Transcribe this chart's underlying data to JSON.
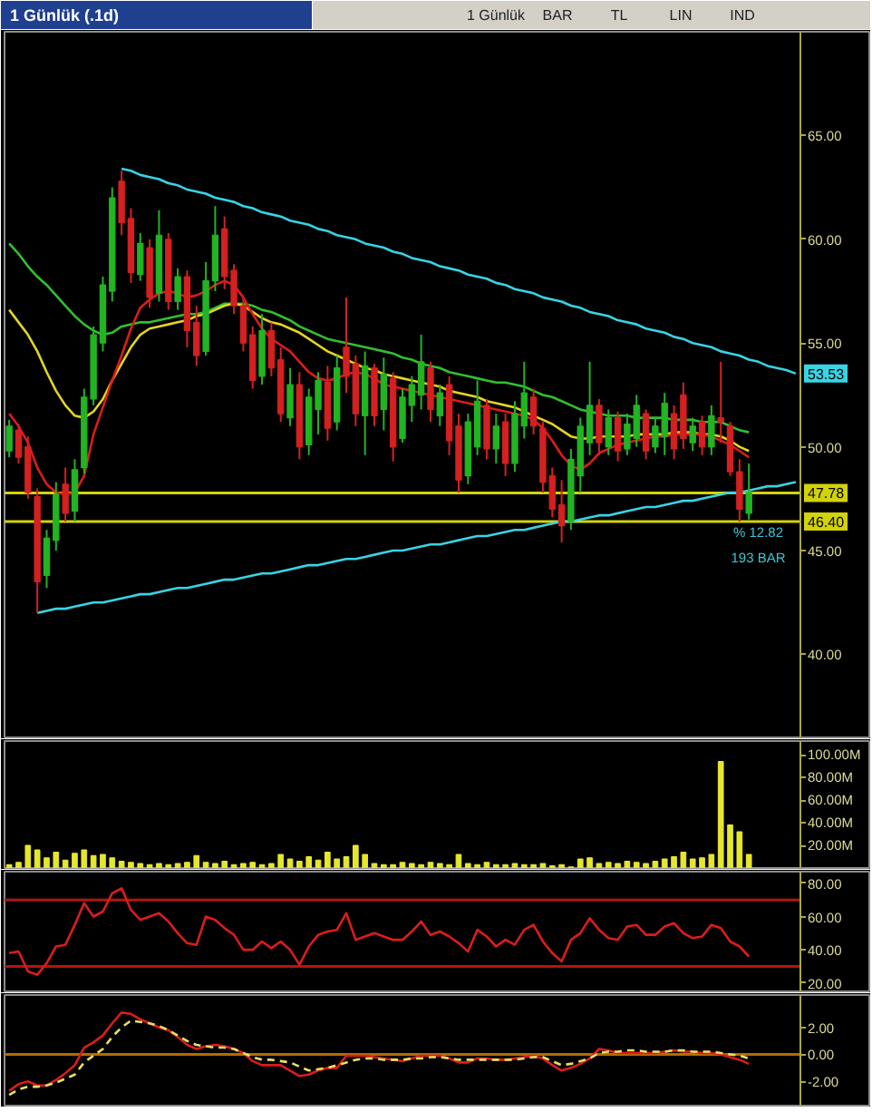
{
  "chart_data": [
    {
      "type": "other",
      "title": "1 Günlük (.1d)",
      "annotations": [
        "1 Günlük",
        "BAR",
        "TL",
        "LIN",
        "IND"
      ]
    },
    {
      "type": "candlestick",
      "categories": [
        null,
        null,
        null,
        null,
        null,
        null,
        null,
        null,
        null,
        null,
        null,
        null,
        null,
        null,
        null,
        null,
        null,
        null,
        null,
        null,
        null,
        null,
        null,
        null,
        null,
        null,
        null,
        null,
        null,
        null,
        null,
        null,
        null,
        null,
        null,
        null,
        null,
        null,
        null,
        null,
        null,
        null,
        null,
        null,
        null,
        null,
        null,
        null,
        null,
        null,
        null,
        null,
        null,
        null,
        null,
        null,
        null,
        null,
        null,
        null,
        null,
        null,
        null,
        null,
        null,
        null,
        null,
        null,
        null,
        null,
        null,
        null,
        null,
        null,
        null,
        null,
        null,
        null,
        null,
        null,
        null,
        null,
        null,
        null,
        null
      ],
      "ohlc": [
        [
          49.8,
          51.3,
          49.5,
          51.0
        ],
        [
          50.8,
          51.1,
          49.2,
          49.5
        ],
        [
          50.0,
          50.5,
          47.5,
          47.8
        ],
        [
          47.6,
          48.0,
          42.0,
          43.5
        ],
        [
          43.8,
          46.0,
          43.2,
          45.6
        ],
        [
          45.5,
          48.3,
          45.0,
          47.7
        ],
        [
          48.2,
          49.0,
          46.4,
          46.8
        ],
        [
          46.9,
          49.4,
          46.4,
          48.9
        ],
        [
          49.0,
          52.8,
          48.7,
          52.4
        ],
        [
          52.3,
          55.8,
          52.0,
          55.4
        ],
        [
          55.0,
          58.2,
          54.6,
          57.8
        ],
        [
          57.5,
          62.5,
          57.0,
          62.0
        ],
        [
          62.8,
          63.3,
          60.2,
          60.8
        ],
        [
          61.0,
          61.5,
          57.9,
          58.4
        ],
        [
          58.3,
          60.3,
          58.0,
          59.8
        ],
        [
          59.6,
          60.0,
          56.7,
          57.2
        ],
        [
          57.4,
          61.4,
          57.0,
          60.2
        ],
        [
          60.0,
          60.3,
          56.6,
          57.0
        ],
        [
          57.0,
          58.6,
          56.6,
          58.2
        ],
        [
          58.2,
          58.5,
          54.8,
          55.6
        ],
        [
          56.0,
          56.8,
          53.9,
          54.4
        ],
        [
          54.6,
          58.9,
          54.4,
          58.0
        ],
        [
          58.0,
          61.6,
          57.5,
          60.2
        ],
        [
          60.5,
          61.1,
          57.6,
          58.2
        ],
        [
          58.5,
          58.8,
          56.4,
          56.8
        ],
        [
          56.8,
          57.2,
          54.6,
          55.0
        ],
        [
          55.4,
          55.8,
          52.8,
          53.2
        ],
        [
          53.4,
          56.4,
          53.0,
          55.6
        ],
        [
          55.6,
          56.0,
          53.4,
          53.8
        ],
        [
          54.2,
          54.8,
          51.2,
          51.6
        ],
        [
          51.4,
          53.8,
          51.0,
          53.0
        ],
        [
          53.0,
          53.6,
          49.4,
          50.0
        ],
        [
          50.1,
          52.8,
          49.6,
          52.4
        ],
        [
          51.8,
          53.6,
          50.6,
          53.2
        ],
        [
          53.1,
          53.9,
          50.3,
          50.9
        ],
        [
          51.2,
          54.4,
          50.8,
          53.8
        ],
        [
          54.8,
          57.2,
          52.6,
          53.4
        ],
        [
          54.0,
          54.4,
          51.0,
          51.6
        ],
        [
          51.5,
          54.6,
          49.6,
          53.9
        ],
        [
          53.8,
          54.0,
          51.0,
          51.5
        ],
        [
          51.8,
          54.3,
          50.8,
          53.5
        ],
        [
          53.3,
          53.6,
          49.3,
          50.0
        ],
        [
          50.4,
          52.8,
          50.2,
          52.4
        ],
        [
          52.0,
          53.4,
          51.2,
          53.0
        ],
        [
          52.5,
          55.4,
          51.8,
          54.1
        ],
        [
          53.8,
          54.1,
          51.2,
          51.8
        ],
        [
          51.5,
          53.0,
          51.0,
          52.6
        ],
        [
          53.0,
          53.4,
          49.6,
          50.3
        ],
        [
          51.0,
          51.6,
          47.8,
          48.4
        ],
        [
          48.6,
          51.6,
          48.2,
          51.2
        ],
        [
          50.0,
          53.2,
          49.6,
          52.2
        ],
        [
          52.0,
          52.3,
          49.4,
          49.9
        ],
        [
          49.9,
          51.6,
          49.2,
          51.0
        ],
        [
          51.2,
          51.6,
          48.6,
          49.2
        ],
        [
          49.2,
          52.2,
          48.8,
          51.6
        ],
        [
          51.0,
          54.1,
          50.4,
          52.6
        ],
        [
          52.4,
          52.8,
          50.6,
          51.0
        ],
        [
          50.9,
          51.2,
          47.8,
          48.3
        ],
        [
          48.6,
          49.0,
          46.6,
          47.0
        ],
        [
          47.2,
          48.4,
          45.4,
          46.2
        ],
        [
          46.4,
          49.9,
          46.0,
          49.4
        ],
        [
          48.6,
          51.4,
          47.8,
          51.0
        ],
        [
          50.2,
          54.1,
          49.6,
          52.0
        ],
        [
          52.0,
          52.3,
          49.6,
          50.2
        ],
        [
          50.0,
          51.8,
          49.6,
          51.4
        ],
        [
          51.4,
          51.7,
          49.3,
          49.8
        ],
        [
          49.9,
          51.6,
          49.6,
          51.1
        ],
        [
          50.4,
          52.5,
          50.0,
          52.0
        ],
        [
          51.6,
          51.8,
          49.4,
          49.8
        ],
        [
          50.0,
          51.4,
          49.7,
          51.0
        ],
        [
          50.5,
          52.6,
          49.6,
          52.1
        ],
        [
          51.6,
          52.0,
          49.4,
          49.9
        ],
        [
          52.5,
          53.1,
          49.9,
          50.4
        ],
        [
          50.2,
          51.4,
          49.8,
          51.0
        ],
        [
          51.2,
          51.5,
          49.6,
          50.0
        ],
        [
          50.0,
          52.0,
          49.6,
          51.5
        ],
        [
          51.4,
          54.1,
          50.2,
          51.2
        ],
        [
          51.0,
          51.2,
          48.6,
          48.8
        ],
        [
          48.8,
          49.4,
          46.4,
          47.0
        ],
        [
          46.8,
          49.2,
          46.5,
          47.8
        ],
        null,
        null,
        null,
        null,
        null
      ],
      "colors": [
        "#22b422",
        "#d42020",
        "#d42020",
        "#d42020",
        "#22b422",
        "#22b422",
        "#d42020",
        "#22b422",
        "#22b422",
        "#22b422",
        "#22b422",
        "#22b422",
        "#d42020",
        "#d42020",
        "#22b422",
        "#d42020",
        "#22b422",
        "#d42020",
        "#22b422",
        "#d42020",
        "#d42020",
        "#22b422",
        "#22b422",
        "#d42020",
        "#d42020",
        "#d42020",
        "#d42020",
        "#22b422",
        "#d42020",
        "#d42020",
        "#22b422",
        "#d42020",
        "#22b422",
        "#22b422",
        "#d42020",
        "#22b422",
        "#d42020",
        "#d42020",
        "#22b422",
        "#d42020",
        "#22b422",
        "#d42020",
        "#22b422",
        "#22b422",
        "#22b422",
        "#d42020",
        "#22b422",
        "#d42020",
        "#d42020",
        "#22b422",
        "#22b422",
        "#d42020",
        "#22b422",
        "#d42020",
        "#22b422",
        "#22b422",
        "#d42020",
        "#d42020",
        "#d42020",
        "#d42020",
        "#22b422",
        "#22b422",
        "#22b422",
        "#d42020",
        "#22b422",
        "#d42020",
        "#22b422",
        "#22b422",
        "#d42020",
        "#22b422",
        "#22b422",
        "#d42020",
        "#d42020",
        "#22b422",
        "#d42020",
        "#22b422",
        "#d42020",
        "#d42020",
        "#d42020",
        "#22b422",
        null,
        null,
        null,
        null,
        null
      ],
      "series": [
        {
          "type": "line",
          "color": "#30c030",
          "values": [
            59.8,
            59.3,
            58.7,
            58.2,
            57.8,
            57.3,
            56.8,
            56.3,
            55.9,
            55.6,
            55.4,
            55.5,
            55.8,
            55.9,
            56.0,
            56.0,
            56.1,
            56.2,
            56.3,
            56.4,
            56.4,
            56.5,
            56.7,
            56.9,
            56.9,
            56.9,
            56.8,
            56.6,
            56.5,
            56.3,
            56.1,
            55.8,
            55.6,
            55.4,
            55.2,
            55.1,
            55.0,
            54.9,
            54.8,
            54.7,
            54.6,
            54.5,
            54.3,
            54.2,
            54.0,
            53.9,
            53.8,
            53.6,
            53.5,
            53.4,
            53.3,
            53.2,
            53.1,
            53.1,
            53.0,
            52.9,
            52.7,
            52.5,
            52.4,
            52.2,
            52.0,
            51.8,
            51.7,
            51.6,
            51.5,
            51.5,
            51.5,
            51.4,
            51.4,
            51.4,
            51.4,
            51.3,
            51.3,
            51.3,
            51.2,
            51.2,
            51.2,
            51.0,
            50.8,
            50.7,
            null,
            null,
            null,
            null,
            null
          ]
        },
        {
          "type": "line",
          "color": "#e4d424",
          "values": [
            56.6,
            56.0,
            55.4,
            54.6,
            53.6,
            52.7,
            52.0,
            51.5,
            51.4,
            51.7,
            52.3,
            53.2,
            54.0,
            54.8,
            55.4,
            55.7,
            55.8,
            55.9,
            56.0,
            56.1,
            56.3,
            56.4,
            56.6,
            56.8,
            56.9,
            56.8,
            56.5,
            56.2,
            56.0,
            55.9,
            55.7,
            55.5,
            55.2,
            54.9,
            54.6,
            54.4,
            54.2,
            54.0,
            53.8,
            53.7,
            53.5,
            53.4,
            53.3,
            53.2,
            53.1,
            53.0,
            52.9,
            52.7,
            52.6,
            52.5,
            52.4,
            52.2,
            52.1,
            52.0,
            51.9,
            51.7,
            51.5,
            51.3,
            51.1,
            50.8,
            50.5,
            50.4,
            50.4,
            50.5,
            50.5,
            50.5,
            50.5,
            50.6,
            50.6,
            50.6,
            50.6,
            50.7,
            50.7,
            50.7,
            50.6,
            50.6,
            50.5,
            50.3,
            50.0,
            49.8,
            null,
            null,
            null,
            null,
            null
          ]
        },
        {
          "type": "line",
          "color": "#dc1c1c",
          "values": [
            51.6,
            51.0,
            50.2,
            49.0,
            48.2,
            47.8,
            47.7,
            47.8,
            48.6,
            50.6,
            51.9,
            53.2,
            54.4,
            55.7,
            56.7,
            57.1,
            57.4,
            57.5,
            57.4,
            57.2,
            57.3,
            57.5,
            57.8,
            58.0,
            57.8,
            57.2,
            56.4,
            55.7,
            55.2,
            54.9,
            54.6,
            54.1,
            53.6,
            53.3,
            53.2,
            53.3,
            53.5,
            53.6,
            53.5,
            53.3,
            53.0,
            52.9,
            52.8,
            52.7,
            52.6,
            52.5,
            52.4,
            52.3,
            52.2,
            52.1,
            52.0,
            51.9,
            51.8,
            51.7,
            51.6,
            51.5,
            51.3,
            50.9,
            50.3,
            49.6,
            49.1,
            48.9,
            49.2,
            49.7,
            49.9,
            50.1,
            50.2,
            50.3,
            50.4,
            50.5,
            50.5,
            50.6,
            50.6,
            50.6,
            50.6,
            50.5,
            50.3,
            50.1,
            49.8,
            49.5,
            null,
            null,
            null,
            null,
            null
          ]
        },
        {
          "type": "line",
          "color": "#38d4e4",
          "values": [
            null,
            null,
            null,
            null,
            null,
            null,
            null,
            null,
            null,
            null,
            null,
            null,
            63.4,
            63.3,
            63.1,
            63.0,
            62.9,
            62.7,
            62.6,
            62.4,
            62.3,
            62.2,
            62.0,
            61.9,
            61.8,
            61.6,
            61.5,
            61.3,
            61.2,
            61.1,
            60.9,
            60.8,
            60.7,
            60.5,
            60.4,
            60.2,
            60.1,
            60.0,
            59.8,
            59.7,
            59.6,
            59.4,
            59.3,
            59.1,
            59.0,
            58.9,
            58.7,
            58.6,
            58.5,
            58.3,
            58.2,
            58.1,
            57.9,
            57.8,
            57.6,
            57.5,
            57.4,
            57.2,
            57.1,
            57.0,
            56.8,
            56.7,
            56.5,
            56.4,
            56.3,
            56.1,
            56.0,
            55.9,
            55.7,
            55.6,
            55.5,
            55.3,
            55.2,
            55.0,
            54.9,
            54.8,
            54.6,
            54.5,
            54.4,
            54.2,
            54.1,
            53.9,
            53.8,
            53.7,
            53.53
          ],
          "value_labels": [
            null,
            null,
            null,
            null,
            null,
            null,
            null,
            null,
            null,
            null,
            null,
            null,
            null,
            null,
            null,
            null,
            null,
            null,
            null,
            null,
            null,
            null,
            null,
            null,
            null,
            null,
            null,
            null,
            null,
            null,
            null,
            null,
            null,
            null,
            null,
            null,
            null,
            null,
            null,
            null,
            null,
            null,
            null,
            null,
            null,
            null,
            null,
            null,
            null,
            null,
            null,
            null,
            null,
            null,
            null,
            null,
            null,
            null,
            null,
            null,
            null,
            null,
            null,
            null,
            null,
            null,
            null,
            null,
            null,
            null,
            null,
            null,
            null,
            null,
            null,
            null,
            null,
            null,
            null,
            null,
            null,
            null,
            null,
            null,
            "53.53"
          ]
        },
        {
          "type": "line",
          "color": "#38d4e4",
          "values": [
            null,
            null,
            null,
            42.0,
            42.1,
            42.2,
            42.2,
            42.3,
            42.4,
            42.5,
            42.5,
            42.6,
            42.7,
            42.8,
            42.9,
            42.9,
            43.0,
            43.1,
            43.2,
            43.2,
            43.3,
            43.4,
            43.5,
            43.6,
            43.6,
            43.7,
            43.8,
            43.9,
            43.9,
            44.0,
            44.1,
            44.2,
            44.3,
            44.3,
            44.4,
            44.5,
            44.6,
            44.6,
            44.7,
            44.8,
            44.9,
            45.0,
            45.0,
            45.1,
            45.2,
            45.3,
            45.3,
            45.4,
            45.5,
            45.6,
            45.7,
            45.7,
            45.8,
            45.9,
            46.0,
            46.0,
            46.1,
            46.2,
            46.3,
            46.4,
            46.4,
            46.5,
            46.6,
            46.7,
            46.7,
            46.8,
            46.9,
            47.0,
            47.1,
            47.1,
            47.2,
            47.3,
            47.4,
            47.4,
            47.5,
            47.6,
            47.7,
            47.8,
            47.8,
            47.9,
            48.0,
            48.1,
            48.1,
            48.2,
            48.3
          ]
        }
      ],
      "ylim": [
        36,
        70
      ],
      "yticks": [
        {
          "value": 40,
          "label": "40.00"
        },
        {
          "value": 45,
          "label": "45.00"
        },
        {
          "value": 50,
          "label": "50.00"
        },
        {
          "value": 55,
          "label": "55.00"
        },
        {
          "value": 60,
          "label": "60.00"
        },
        {
          "value": 65,
          "label": "65.00"
        }
      ],
      "ref_lines": [
        {
          "axis": "y",
          "value": 47.78,
          "label": "47.78",
          "color": "#d2d20a"
        },
        {
          "axis": "y",
          "value": 46.4,
          "label": "46.40",
          "color": "#d2d20a"
        }
      ],
      "annotations": [
        "% 12.82",
        "193 BAR"
      ],
      "tick_labels": "y"
    },
    {
      "type": "bar",
      "categories": [
        null,
        null,
        null,
        null,
        null,
        null,
        null,
        null,
        null,
        null,
        null,
        null,
        null,
        null,
        null,
        null,
        null,
        null,
        null,
        null,
        null,
        null,
        null,
        null,
        null,
        null,
        null,
        null,
        null,
        null,
        null,
        null,
        null,
        null,
        null,
        null,
        null,
        null,
        null,
        null,
        null,
        null,
        null,
        null,
        null,
        null,
        null,
        null,
        null,
        null,
        null,
        null,
        null,
        null,
        null,
        null,
        null,
        null,
        null,
        null,
        null,
        null,
        null,
        null,
        null,
        null,
        null,
        null,
        null,
        null,
        null,
        null,
        null,
        null,
        null,
        null,
        null,
        null,
        null,
        null,
        null,
        null,
        null,
        null,
        null
      ],
      "values": [
        3,
        5,
        20,
        16,
        9,
        14,
        7,
        13,
        16,
        11,
        12,
        9,
        6,
        5,
        4,
        3,
        4,
        3,
        4,
        5,
        11,
        5,
        4,
        6,
        3,
        4,
        5,
        3,
        4,
        12,
        8,
        6,
        10,
        7,
        14,
        8,
        10,
        20,
        12,
        4,
        3,
        3,
        5,
        4,
        3,
        5,
        4,
        3,
        12,
        4,
        3,
        5,
        3,
        3,
        4,
        3,
        3,
        4,
        2,
        3,
        1,
        8,
        9,
        4,
        5,
        4,
        6,
        5,
        4,
        6,
        8,
        10,
        14,
        8,
        9,
        12,
        94,
        38,
        32,
        12,
        null,
        null,
        null,
        null,
        null
      ],
      "color": "#e6e62e",
      "ylim": [
        0,
        112
      ],
      "yticks": [
        {
          "value": 20,
          "label": "20.00M"
        },
        {
          "value": 40,
          "label": "40.00M"
        },
        {
          "value": 60,
          "label": "60.00M"
        },
        {
          "value": 80,
          "label": "80.00M"
        },
        {
          "value": 100,
          "label": "100.00M"
        }
      ],
      "tick_labels": "y"
    },
    {
      "type": "line",
      "categories": [
        null,
        null,
        null,
        null,
        null,
        null,
        null,
        null,
        null,
        null,
        null,
        null,
        null,
        null,
        null,
        null,
        null,
        null,
        null,
        null,
        null,
        null,
        null,
        null,
        null,
        null,
        null,
        null,
        null,
        null,
        null,
        null,
        null,
        null,
        null,
        null,
        null,
        null,
        null,
        null,
        null,
        null,
        null,
        null,
        null,
        null,
        null,
        null,
        null,
        null,
        null,
        null,
        null,
        null,
        null,
        null,
        null,
        null,
        null,
        null,
        null,
        null,
        null,
        null,
        null,
        null,
        null,
        null,
        null,
        null,
        null,
        null,
        null,
        null,
        null,
        null,
        null,
        null,
        null,
        null,
        null,
        null,
        null,
        null,
        null
      ],
      "series": [
        {
          "color": "#dc1c1c",
          "values": [
            38,
            39,
            27,
            25,
            32,
            42,
            43,
            55,
            68,
            60,
            63,
            74,
            77,
            64,
            58,
            60,
            62,
            57,
            50,
            44,
            43,
            60,
            58,
            53,
            49,
            40,
            40,
            45,
            41,
            45,
            40,
            31,
            42,
            49,
            51,
            52,
            62,
            46,
            48,
            50,
            48,
            46,
            46,
            51,
            57,
            49,
            51,
            48,
            44,
            39,
            52,
            48,
            42,
            46,
            43,
            52,
            55,
            45,
            38,
            33,
            46,
            50,
            59,
            52,
            47,
            46,
            54,
            55,
            49,
            49,
            54,
            56,
            50,
            47,
            48,
            55,
            53,
            45,
            42,
            36,
            null,
            null,
            null,
            null,
            null
          ]
        }
      ],
      "ylim": [
        15,
        87
      ],
      "yticks": [
        {
          "value": 20,
          "label": "20.00"
        },
        {
          "value": 40,
          "label": "40.00"
        },
        {
          "value": 60,
          "label": "60.00"
        },
        {
          "value": 80,
          "label": "80.00"
        }
      ],
      "ref_lines": [
        {
          "axis": "y",
          "value": 70,
          "color": "#b41414"
        },
        {
          "axis": "y",
          "value": 30,
          "color": "#b41414"
        }
      ],
      "tick_labels": "y"
    },
    {
      "type": "line",
      "categories": [
        null,
        null,
        null,
        null,
        null,
        null,
        null,
        null,
        null,
        null,
        null,
        null,
        null,
        null,
        null,
        null,
        null,
        null,
        null,
        null,
        null,
        null,
        null,
        null,
        null,
        null,
        null,
        null,
        null,
        null,
        null,
        null,
        null,
        null,
        null,
        null,
        null,
        null,
        null,
        null,
        null,
        null,
        null,
        null,
        null,
        null,
        null,
        null,
        null,
        null,
        null,
        null,
        null,
        null,
        null,
        null,
        null,
        null,
        null,
        null,
        null,
        null,
        null,
        null,
        null,
        null,
        null,
        null,
        null,
        null,
        null,
        null,
        null,
        null,
        null,
        null,
        null,
        null,
        null,
        null,
        null,
        null,
        null,
        null,
        null
      ],
      "series": [
        {
          "color": "#dc1c1c",
          "values": [
            -2.7,
            -2.2,
            -2.0,
            -2.3,
            -2.3,
            -1.9,
            -1.4,
            -0.8,
            0.5,
            0.9,
            1.4,
            2.3,
            3.1,
            3.0,
            2.6,
            2.3,
            2.0,
            1.8,
            1.3,
            0.7,
            0.4,
            0.6,
            0.7,
            0.6,
            0.4,
            0.1,
            -0.5,
            -0.8,
            -0.8,
            -0.8,
            -1.2,
            -1.6,
            -1.5,
            -1.2,
            -1.0,
            -1.0,
            -0.1,
            -0.1,
            -0.1,
            -0.2,
            -0.3,
            -0.4,
            -0.5,
            -0.3,
            -0.1,
            -0.1,
            -0.1,
            -0.3,
            -0.6,
            -0.6,
            -0.3,
            -0.3,
            -0.4,
            -0.4,
            -0.3,
            -0.2,
            -0.1,
            -0.3,
            -0.8,
            -1.2,
            -1.0,
            -0.7,
            -0.3,
            0.4,
            0.3,
            0.1,
            0.1,
            0.1,
            0.1,
            0.1,
            0.2,
            0.3,
            0.2,
            0.2,
            0.1,
            0.1,
            0.0,
            -0.2,
            -0.4,
            -0.7,
            null,
            null,
            null,
            null,
            null
          ]
        },
        {
          "color": "#e8e064",
          "line_style": "dashed",
          "values": [
            -3.0,
            -2.6,
            -2.4,
            -2.4,
            -2.3,
            -2.1,
            -1.8,
            -1.5,
            -0.6,
            -0.1,
            0.4,
            1.3,
            2.0,
            2.5,
            2.4,
            2.3,
            2.1,
            1.8,
            1.4,
            1.0,
            0.7,
            0.6,
            0.5,
            0.5,
            0.4,
            0.1,
            -0.2,
            -0.4,
            -0.4,
            -0.5,
            -0.6,
            -0.9,
            -1.2,
            -1.1,
            -1.0,
            -0.8,
            -0.6,
            -0.4,
            -0.3,
            -0.3,
            -0.4,
            -0.4,
            -0.4,
            -0.3,
            -0.3,
            -0.2,
            -0.2,
            -0.3,
            -0.4,
            -0.4,
            -0.4,
            -0.4,
            -0.4,
            -0.4,
            -0.4,
            -0.3,
            -0.2,
            -0.2,
            -0.5,
            -0.8,
            -0.7,
            -0.5,
            -0.3,
            0.1,
            0.2,
            0.2,
            0.3,
            0.3,
            0.2,
            0.2,
            0.2,
            0.3,
            0.3,
            0.2,
            0.2,
            0.2,
            0.1,
            0.0,
            -0.1,
            -0.3,
            null,
            null,
            null,
            null,
            null
          ]
        }
      ],
      "ylim": [
        -3.8,
        4.4
      ],
      "yticks": [
        {
          "value": -2,
          "label": "-2.00"
        },
        {
          "value": 0,
          "label": "0.00"
        },
        {
          "value": 2,
          "label": "2.00"
        }
      ],
      "ref_lines": [
        {
          "axis": "y",
          "value": 0,
          "color": "#b46c00"
        }
      ],
      "tick_labels": "y"
    }
  ]
}
